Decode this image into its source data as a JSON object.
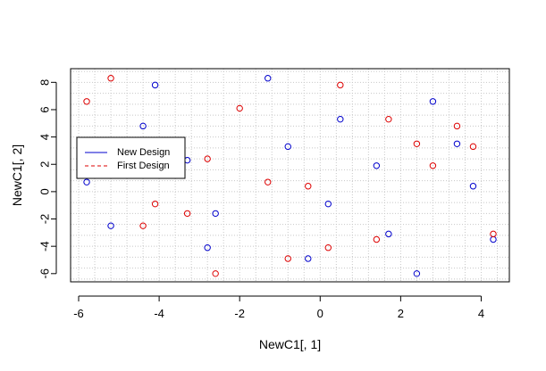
{
  "chart_data": {
    "type": "scatter",
    "title": "",
    "xlabel": "NewC1[, 1]",
    "ylabel": "NewC1[, 2]",
    "xlim": [
      -6.2,
      4.7
    ],
    "ylim": [
      -6.6,
      9.0
    ],
    "xticks": [
      -6,
      -4,
      -2,
      0,
      2,
      4
    ],
    "yticks": [
      -6,
      -4,
      -2,
      0,
      2,
      4,
      6,
      8
    ],
    "x_minor_grid_step": 0.4,
    "y_minor_grid_step": 0.8,
    "grid": true,
    "legend": {
      "position": "left"
    },
    "series": [
      {
        "name": "New Design",
        "color": "#0000cc",
        "line_style": "solid",
        "points": [
          [
            -5.8,
            0.7
          ],
          [
            -5.2,
            -2.5
          ],
          [
            -4.4,
            4.8
          ],
          [
            -4.1,
            7.8
          ],
          [
            -3.3,
            2.3
          ],
          [
            -2.8,
            -4.1
          ],
          [
            -2.6,
            -1.6
          ],
          [
            -1.3,
            8.3
          ],
          [
            -0.8,
            3.3
          ],
          [
            -0.3,
            -4.9
          ],
          [
            0.2,
            -0.9
          ],
          [
            0.5,
            5.3
          ],
          [
            1.4,
            1.9
          ],
          [
            1.7,
            -3.1
          ],
          [
            2.4,
            -6.0
          ],
          [
            2.8,
            6.6
          ],
          [
            3.4,
            3.5
          ],
          [
            3.8,
            0.4
          ],
          [
            4.3,
            -3.5
          ]
        ]
      },
      {
        "name": "First Design",
        "color": "#dd0000",
        "line_style": "dashed",
        "points": [
          [
            -5.8,
            6.6
          ],
          [
            -5.2,
            8.3
          ],
          [
            -4.4,
            -2.5
          ],
          [
            -4.1,
            -0.9
          ],
          [
            -3.3,
            -1.6
          ],
          [
            -2.8,
            2.4
          ],
          [
            -2.6,
            -6.0
          ],
          [
            -2.0,
            6.1
          ],
          [
            -1.3,
            0.7
          ],
          [
            -0.8,
            -4.9
          ],
          [
            -0.3,
            0.4
          ],
          [
            0.2,
            -4.1
          ],
          [
            0.5,
            7.8
          ],
          [
            1.4,
            -3.5
          ],
          [
            1.7,
            5.3
          ],
          [
            2.4,
            3.5
          ],
          [
            2.8,
            1.9
          ],
          [
            3.4,
            4.8
          ],
          [
            3.8,
            3.3
          ],
          [
            4.3,
            -3.1
          ]
        ]
      }
    ]
  }
}
